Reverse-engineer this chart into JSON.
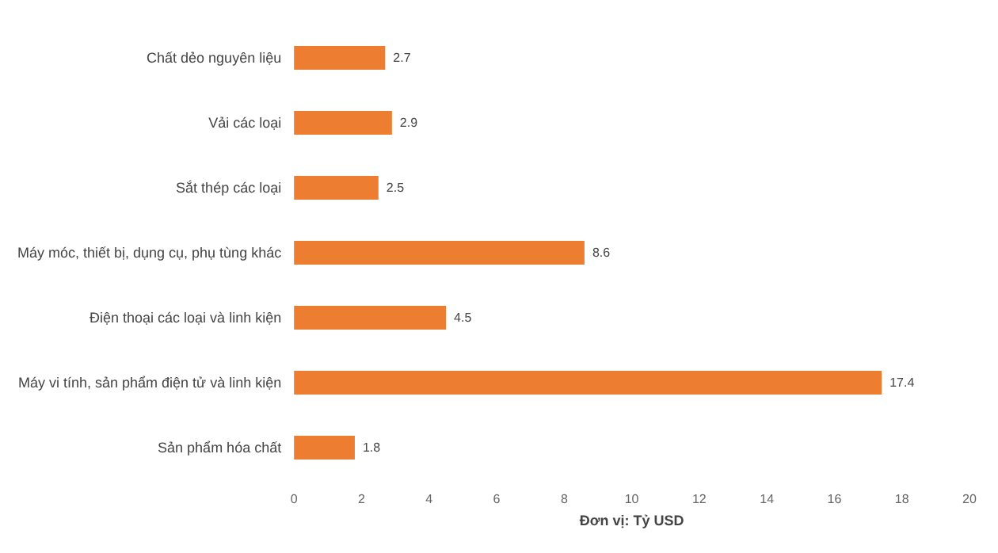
{
  "chart_data": {
    "type": "bar",
    "orientation": "horizontal",
    "xlabel": "Đơn vị: Tỷ USD",
    "categories": [
      "Chất dẻo nguyên liệu",
      "Vải các loại",
      "Sắt thép các loại",
      "Máy móc, thiết bị, dụng cụ, phụ tùng khác",
      "Điện thoại các loại và linh kiện",
      "Máy vi tính, sản phẩm điện tử và linh kiện",
      "Sản phẩm hóa chất"
    ],
    "values": [
      2.7,
      2.9,
      2.5,
      8.6,
      4.5,
      17.4,
      1.8
    ],
    "color": "#ed7d31",
    "xlim": [
      0,
      20
    ],
    "xticks": [
      0,
      2,
      4,
      6,
      8,
      10,
      12,
      14,
      16,
      18,
      20
    ],
    "grid": false,
    "data_labels": true
  }
}
